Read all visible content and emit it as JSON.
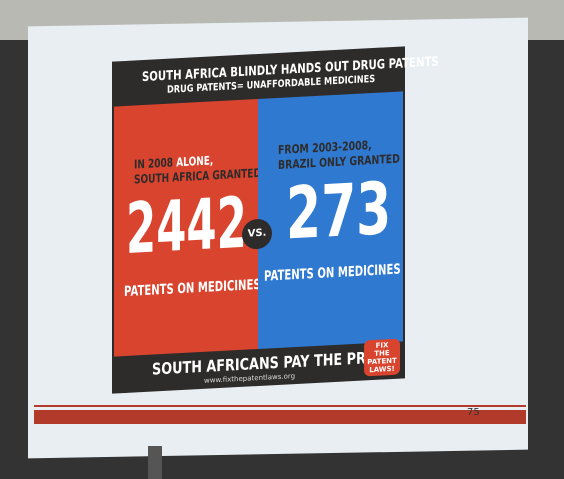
{
  "slide": {
    "header": {
      "title": "SOUTH AFRICA BLINDLY HANDS OUT DRUG PATENTS",
      "subtitle": "DRUG PATENTS= UNAFFORDABLE MEDICINES"
    },
    "left": {
      "intro_before": "IN 2008 ",
      "intro_highlight": "ALONE,",
      "intro_line2": "SOUTH AFRICA GRANTED",
      "number": 2442,
      "caption": "PATENTS ON MEDICINES"
    },
    "versus": "VS.",
    "right": {
      "intro": "FROM 2003-2008,",
      "intro_line2": "BRAZIL ONLY GRANTED",
      "number": 273,
      "caption": "PATENTS ON MEDICINES"
    },
    "footer": {
      "tagline": "SOUTH AFRICANS PAY THE PRICE",
      "url": "www.fixthepatentlaws.org",
      "badge": [
        "FIX",
        "THE",
        "PATENT",
        "LAWS!"
      ]
    },
    "page_number": 75
  }
}
